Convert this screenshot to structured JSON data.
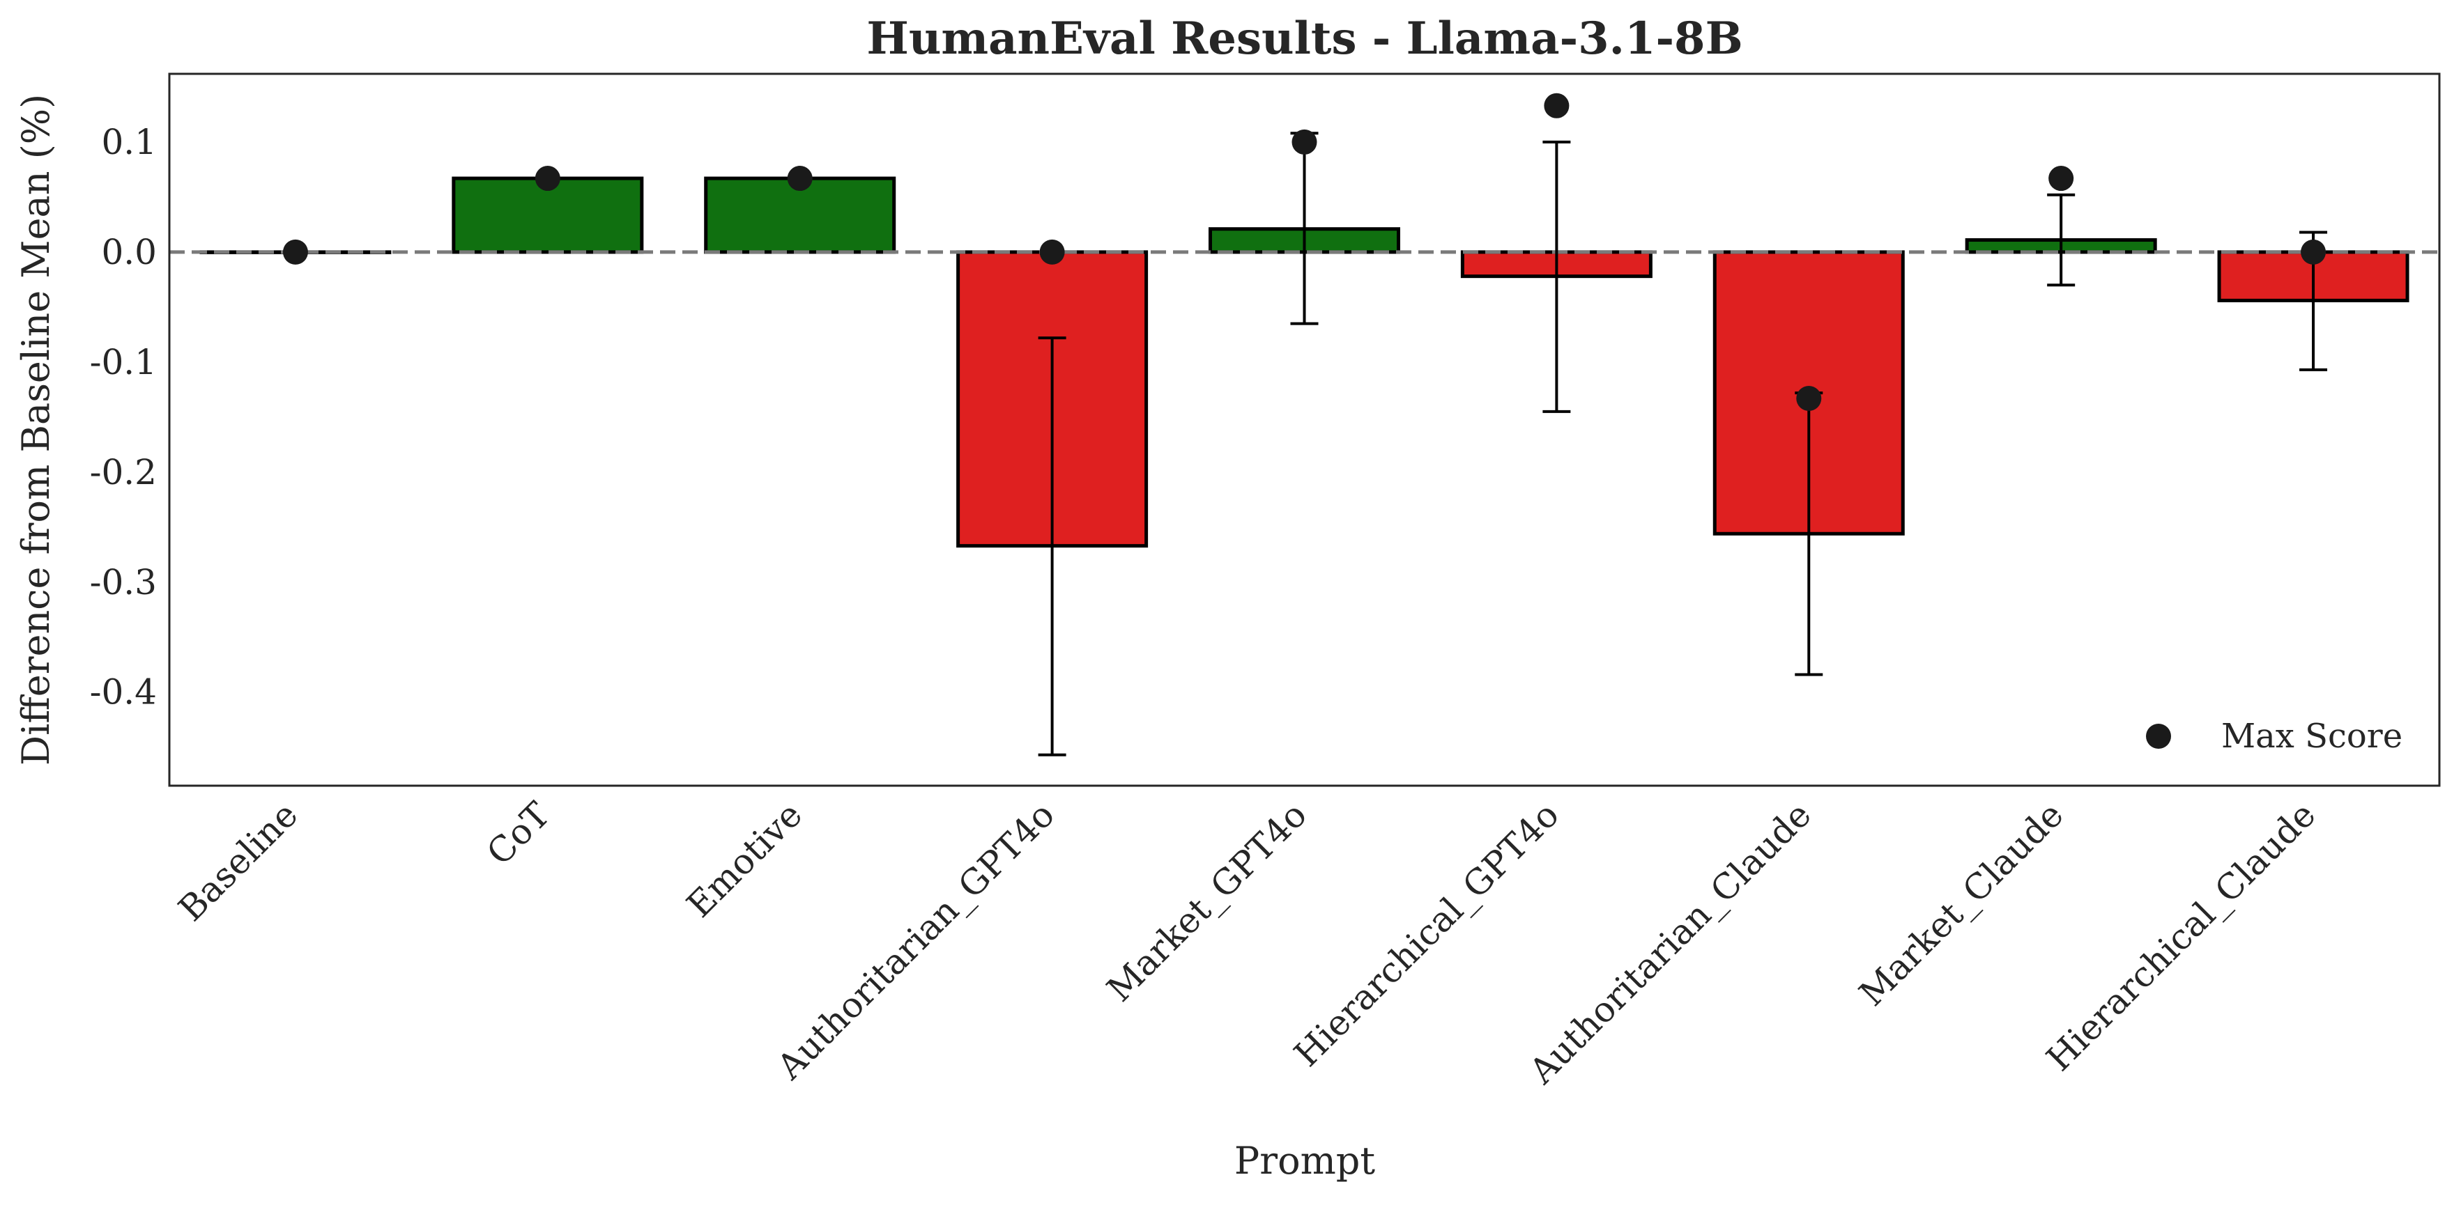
{
  "chart_data": {
    "type": "bar",
    "title": "HumanEval Results - Llama-3.1-8B",
    "xlabel": "Prompt",
    "ylabel": "Difference from Baseline Mean (%)",
    "ylim": [
      -0.485,
      0.162
    ],
    "yticks": [
      0.1,
      0.0,
      -0.1,
      -0.2,
      -0.3,
      -0.4
    ],
    "ytick_labels": [
      "0.1",
      "0.0",
      "-0.1",
      "-0.2",
      "-0.3",
      "-0.4"
    ],
    "grid": false,
    "reference_line": 0.0,
    "legend": {
      "label": "Max Score",
      "placement": "lower-right"
    },
    "colors": {
      "positive": "#107010",
      "negative": "#df2020",
      "marker": "#1a1a1a",
      "edge": "#000000"
    },
    "categories": [
      "Baseline",
      "CoT",
      "Emotive",
      "Authoritarian_GPT4o",
      "Market_GPT4o",
      "Hierarchical_GPT4o",
      "Authoritarian_Claude",
      "Market_Claude",
      "Hierarchical_Claude"
    ],
    "values": [
      0.0,
      0.067,
      0.067,
      -0.267,
      0.021,
      -0.022,
      -0.256,
      0.011,
      -0.044
    ],
    "error_low": [
      null,
      null,
      null,
      -0.457,
      -0.065,
      -0.145,
      -0.384,
      -0.03,
      -0.107
    ],
    "error_high": [
      null,
      null,
      null,
      -0.078,
      0.108,
      0.1,
      -0.128,
      0.052,
      0.018
    ],
    "max_score": [
      0.0,
      0.067,
      0.067,
      0.0,
      0.1,
      0.133,
      -0.133,
      0.067,
      0.0
    ]
  }
}
